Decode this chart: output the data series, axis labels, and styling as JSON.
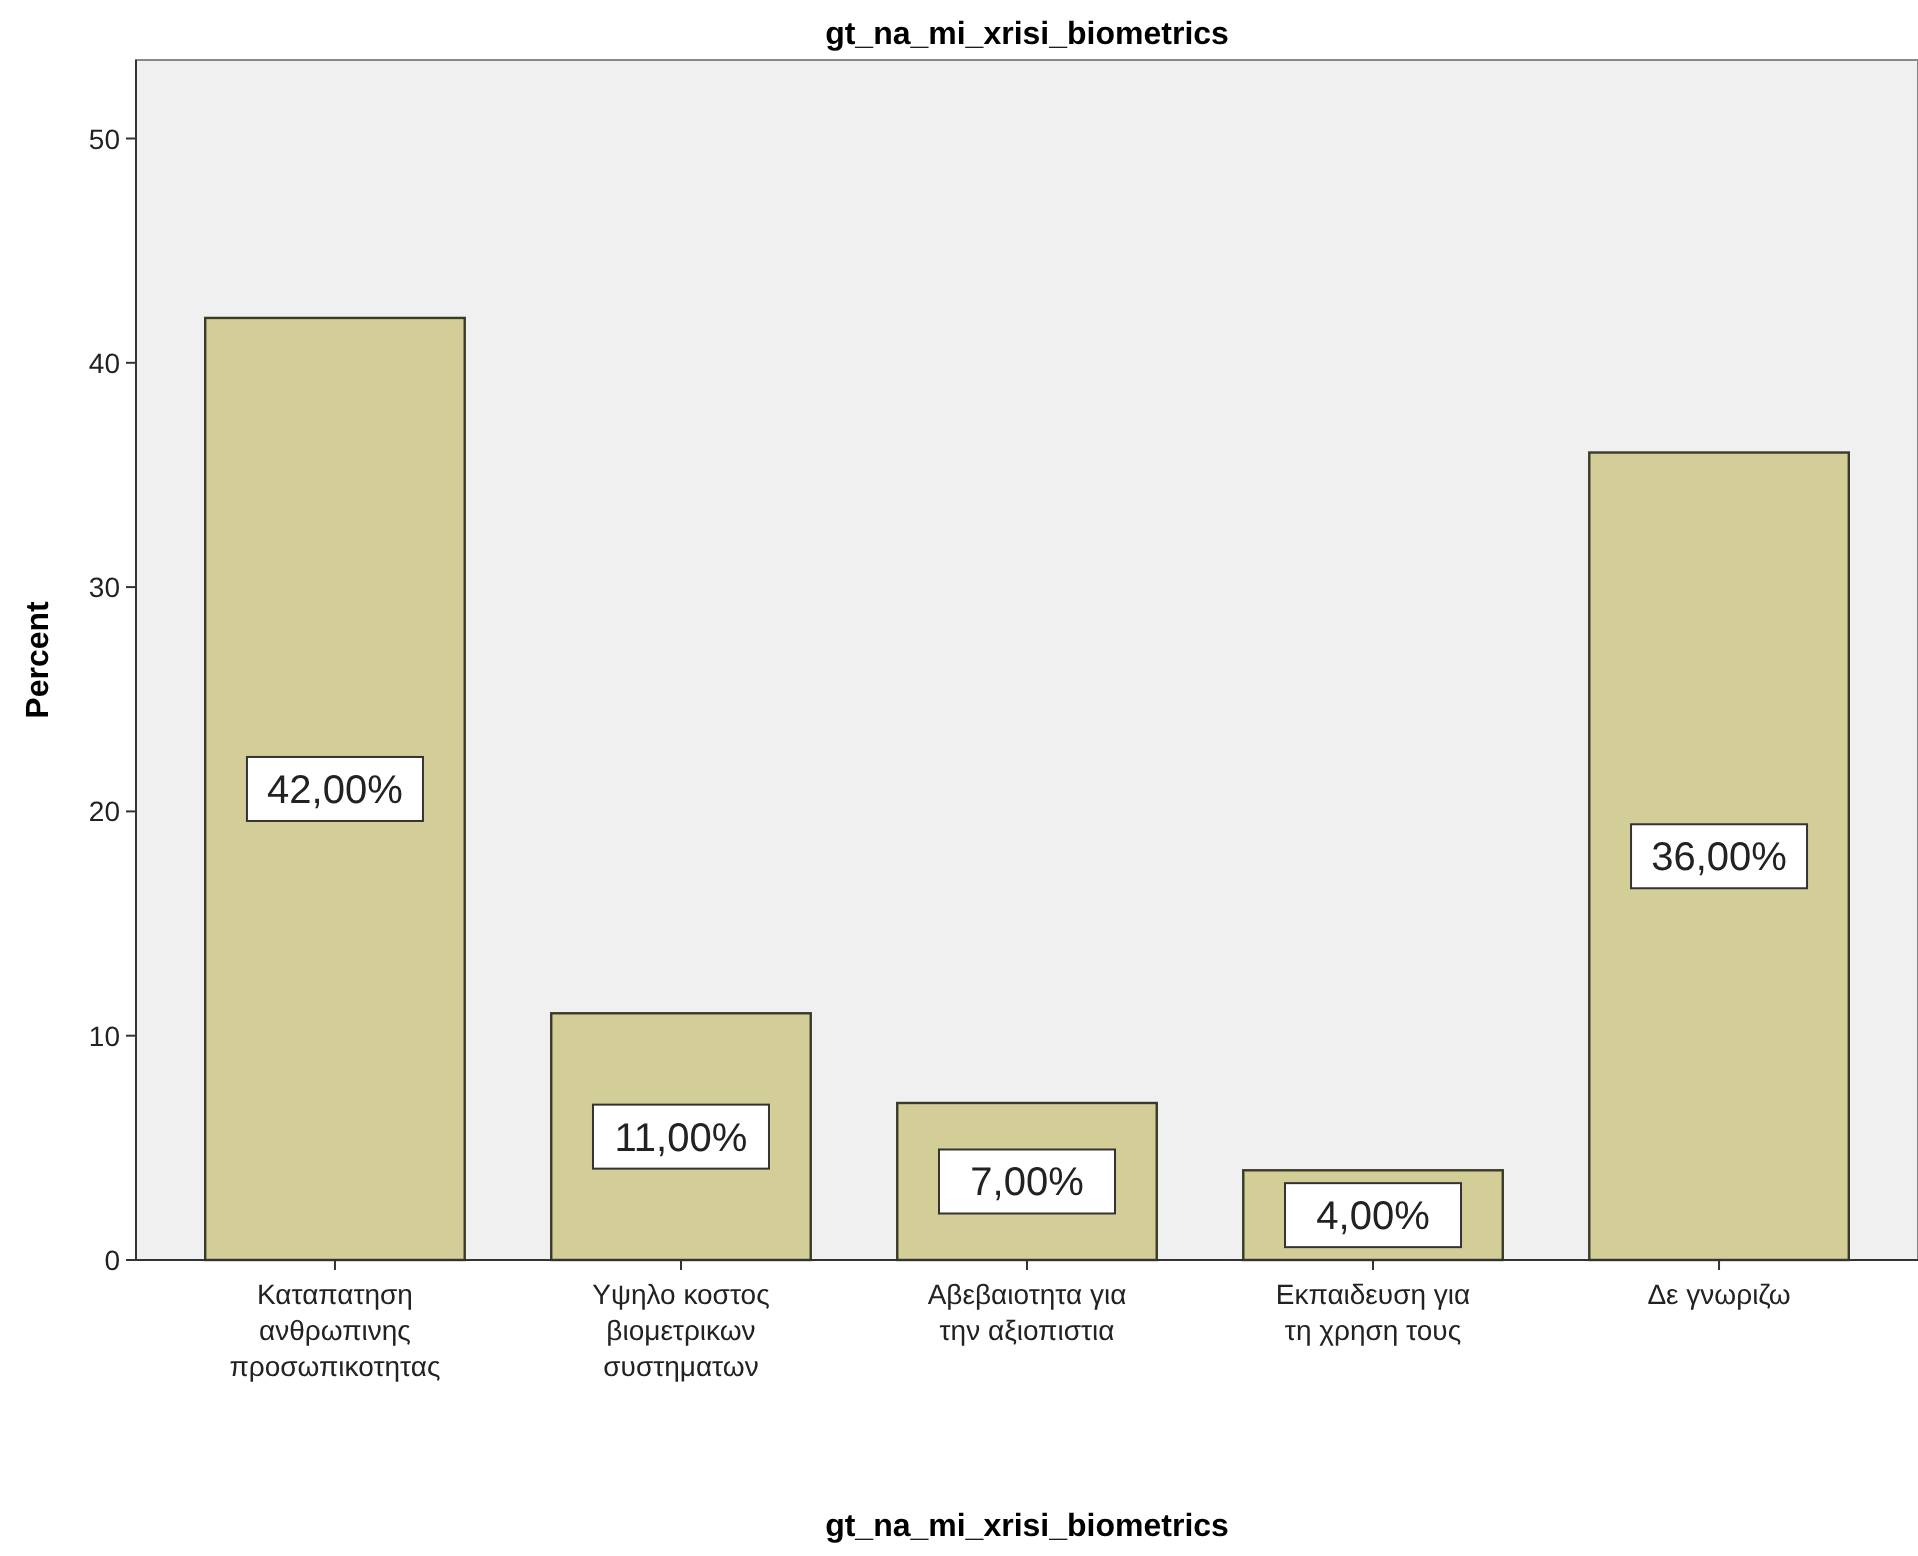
{
  "chart_data": {
    "type": "bar",
    "title": "gt_na_mi_xrisi_biometrics",
    "xlabel": "gt_na_mi_xrisi_biometrics",
    "ylabel": "Percent",
    "categories": [
      "Καταπατηση\nανθρωπινης\nπροσωπικοτητας",
      "Υψηλο κοστος\nβιομετρικων\nσυστηματων",
      "Αβεβαιοτητα για\nτην αξιοπιστια",
      "Εκπαιδευση για\nτη χρηση τους",
      "Δε γνωριζω"
    ],
    "values": [
      42,
      11,
      7,
      4,
      36
    ],
    "value_labels": [
      "42,00%",
      "11,00%",
      "7,00%",
      "4,00%",
      "36,00%"
    ],
    "color": "#d3ce98",
    "ylim": [
      0,
      53.5
    ],
    "yticks": [
      0,
      10,
      20,
      30,
      40,
      50
    ],
    "grid": false
  }
}
